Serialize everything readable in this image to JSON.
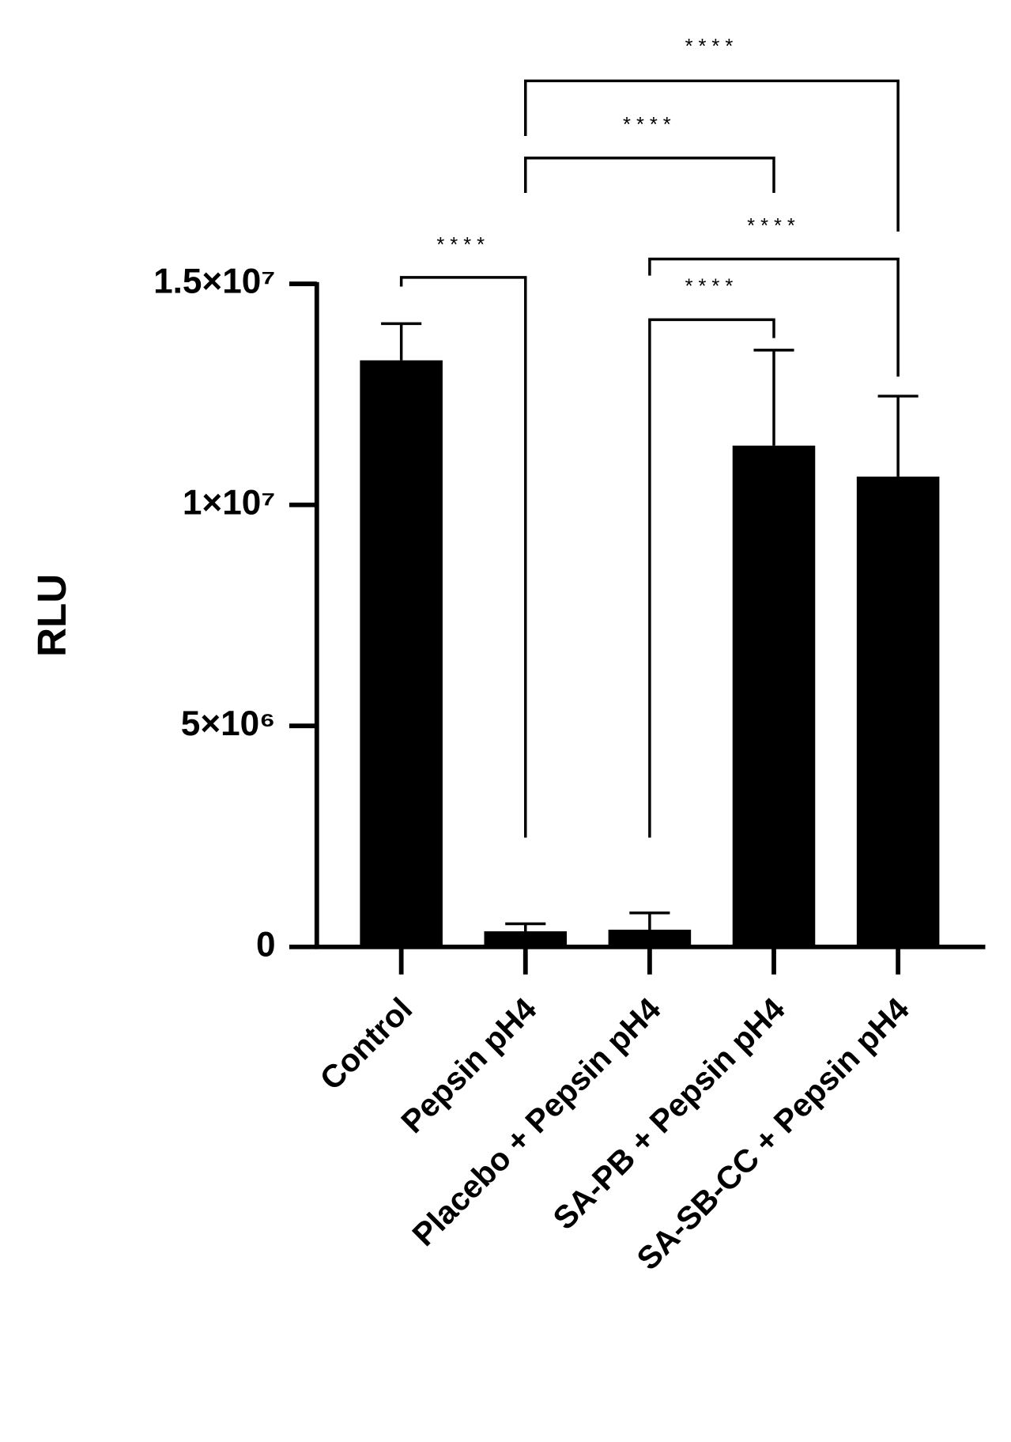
{
  "chart_data": {
    "type": "bar",
    "y_label": "RLU",
    "categories": [
      "Control",
      "Pepsin pH4",
      "Placebo + Pepsin pH4",
      "SA-PB + Pepsin pH4",
      "SA-SB-CC + Pepsin pH4"
    ],
    "values": [
      13270000,
      353000,
      390000,
      11340000,
      10640000
    ],
    "errors": [
      830000,
      170000,
      380000,
      2160000,
      1820000
    ],
    "color": "#000000",
    "ylim": [
      0,
      15000000
    ],
    "yticks": [
      0,
      {
        "value": 5000000,
        "label": "5×10⁶"
      },
      {
        "value": 10000000,
        "label": "1×10⁷"
      },
      {
        "value": 15000000,
        "label": "1.5×10⁷"
      }
    ],
    "comparisons": [
      {
        "pair": [
          0,
          1
        ],
        "label": "****"
      },
      {
        "pair": [
          1,
          4
        ],
        "label": "****"
      },
      {
        "pair": [
          1,
          3
        ],
        "label": "****"
      },
      {
        "pair": [
          2,
          4
        ],
        "label": "****"
      },
      {
        "pair": [
          2,
          3
        ],
        "label": "****"
      }
    ]
  }
}
